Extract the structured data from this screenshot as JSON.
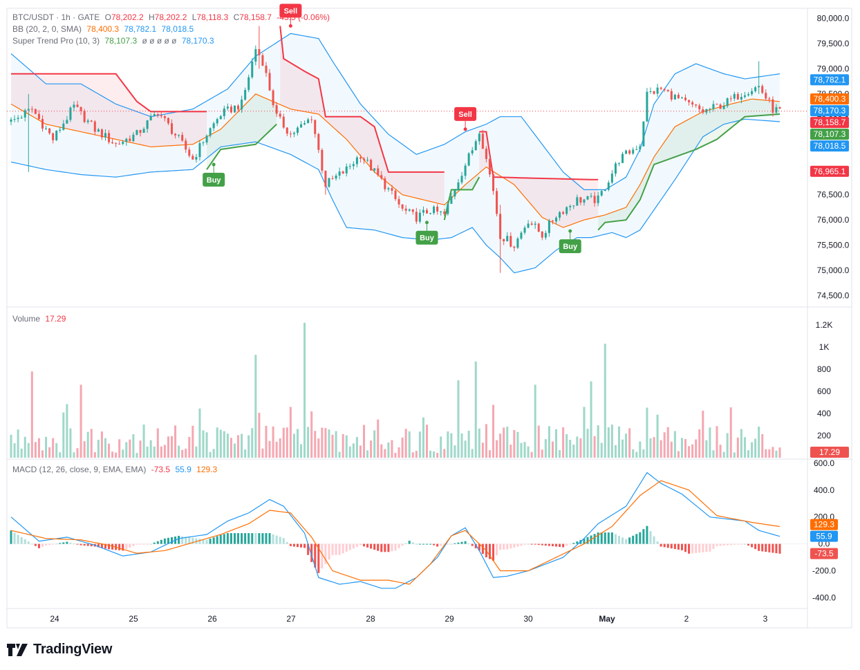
{
  "header": {
    "symbol": "BTC/USDT · 1h · GATE",
    "open_label": "O",
    "open": "78,202.2",
    "high_label": "H",
    "high": "78,202.2",
    "low_label": "L",
    "low": "78,118.3",
    "close_label": "C",
    "close": "78,158.7",
    "change": "-43.5 (-0.06%)"
  },
  "bb_legend": {
    "label": "BB (20, 2, 0, SMA)",
    "basis": "78,400.3",
    "upper": "78,782.1",
    "lower": "78,018.5"
  },
  "st_legend": {
    "label": "Super Trend Pro (10, 3)",
    "value": "78,107.3",
    "placeholders": "ø ø ø ø ø",
    "value2": "78,170.3"
  },
  "volume_legend": {
    "label": "Volume",
    "value": "17.29"
  },
  "macd_legend": {
    "label": "MACD (12, 26, close, 9, EMA, EMA)",
    "hist": "-73.5",
    "macd": "55.9",
    "signal": "129.3"
  },
  "brand": {
    "name": "TradingView"
  },
  "colors": {
    "up": "#26a69a",
    "down": "#ef5350",
    "vol_up": "#9fd8c9",
    "vol_down": "#f5a7b1",
    "bb_basis": "#ff6d00",
    "bb_band": "#2196f3",
    "st_up": "#43a047",
    "st_down": "#f23645",
    "macd": "#2196f3",
    "signal": "#ff6d00"
  },
  "chart_data": [
    {
      "type": "candlestick",
      "title": "BTC/USDT · 1h · GATE",
      "x_ticks": [
        "24",
        "25",
        "26",
        "27",
        "28",
        "29",
        "30",
        "May",
        "2",
        "3"
      ],
      "y_ticks": [
        "80,000.0",
        "79,500.0",
        "79,000.0",
        "78,500.0",
        "78,000.0",
        "77,500.0",
        "77,000.0",
        "76,500.0",
        "76,000.0",
        "75,500.0",
        "75,000.0",
        "74,500.0"
      ],
      "ylim": [
        74300,
        80200
      ],
      "price_path": [
        [
          0,
          77950
        ],
        [
          6,
          78200
        ],
        [
          12,
          77600
        ],
        [
          18,
          78250
        ],
        [
          24,
          77800
        ],
        [
          30,
          77500
        ],
        [
          36,
          77700
        ],
        [
          42,
          78150
        ],
        [
          48,
          77600
        ],
        [
          52,
          77200
        ],
        [
          56,
          77700
        ],
        [
          60,
          78100
        ],
        [
          66,
          78300
        ],
        [
          70,
          79400
        ],
        [
          72,
          79150
        ],
        [
          76,
          78050
        ],
        [
          80,
          77700
        ],
        [
          84,
          77900
        ],
        [
          86,
          78050
        ],
        [
          90,
          76700
        ],
        [
          96,
          77000
        ],
        [
          100,
          77300
        ],
        [
          104,
          76950
        ],
        [
          108,
          76600
        ],
        [
          112,
          76200
        ],
        [
          116,
          76050
        ],
        [
          120,
          76200
        ],
        [
          124,
          76100
        ],
        [
          128,
          76800
        ],
        [
          132,
          77400
        ],
        [
          134,
          77800
        ],
        [
          138,
          76600
        ],
        [
          140,
          75700
        ],
        [
          144,
          75500
        ],
        [
          148,
          76000
        ],
        [
          152,
          75700
        ],
        [
          156,
          76100
        ],
        [
          162,
          76400
        ],
        [
          168,
          76400
        ],
        [
          174,
          77200
        ],
        [
          180,
          77500
        ],
        [
          182,
          78500
        ],
        [
          186,
          78600
        ],
        [
          192,
          78350
        ],
        [
          198,
          78150
        ],
        [
          204,
          78300
        ],
        [
          210,
          78550
        ],
        [
          214,
          78650
        ],
        [
          218,
          78200
        ],
        [
          220,
          78160
        ]
      ],
      "wicks": [
        {
          "i": 5,
          "high": 78500,
          "low": 76950
        },
        {
          "i": 71,
          "high": 79850,
          "low": 79000
        },
        {
          "i": 90,
          "high": 76700,
          "low": 76500
        },
        {
          "i": 140,
          "high": 76300,
          "low": 74950
        },
        {
          "i": 214,
          "high": 79150,
          "low": 78500
        }
      ],
      "bollinger": {
        "upper": [
          [
            0,
            79300
          ],
          [
            10,
            78700
          ],
          [
            20,
            78700
          ],
          [
            30,
            78300
          ],
          [
            40,
            78050
          ],
          [
            52,
            78200
          ],
          [
            62,
            78600
          ],
          [
            70,
            79250
          ],
          [
            80,
            79700
          ],
          [
            88,
            79600
          ],
          [
            92,
            79150
          ],
          [
            100,
            78300
          ],
          [
            108,
            77700
          ],
          [
            116,
            77300
          ],
          [
            124,
            77500
          ],
          [
            130,
            77750
          ],
          [
            136,
            77900
          ],
          [
            140,
            78050
          ],
          [
            146,
            78050
          ],
          [
            152,
            77500
          ],
          [
            158,
            76950
          ],
          [
            164,
            76600
          ],
          [
            170,
            76600
          ],
          [
            176,
            76850
          ],
          [
            180,
            77400
          ],
          [
            184,
            78300
          ],
          [
            190,
            78900
          ],
          [
            196,
            79100
          ],
          [
            204,
            78900
          ],
          [
            210,
            78800
          ],
          [
            220,
            78900
          ]
        ],
        "basis": [
          [
            0,
            78300
          ],
          [
            10,
            77900
          ],
          [
            20,
            77750
          ],
          [
            30,
            77600
          ],
          [
            40,
            77450
          ],
          [
            52,
            77500
          ],
          [
            60,
            77800
          ],
          [
            70,
            78500
          ],
          [
            80,
            78200
          ],
          [
            88,
            78100
          ],
          [
            96,
            77600
          ],
          [
            104,
            76950
          ],
          [
            112,
            76500
          ],
          [
            124,
            76300
          ],
          [
            130,
            76700
          ],
          [
            136,
            77050
          ],
          [
            144,
            76700
          ],
          [
            152,
            76050
          ],
          [
            158,
            75850
          ],
          [
            164,
            76000
          ],
          [
            170,
            76100
          ],
          [
            176,
            76250
          ],
          [
            180,
            76700
          ],
          [
            184,
            77250
          ],
          [
            190,
            77850
          ],
          [
            198,
            78150
          ],
          [
            206,
            78300
          ],
          [
            212,
            78400
          ],
          [
            220,
            78350
          ]
        ],
        "lower": [
          [
            0,
            77150
          ],
          [
            10,
            77000
          ],
          [
            20,
            76900
          ],
          [
            30,
            76850
          ],
          [
            40,
            76950
          ],
          [
            52,
            77000
          ],
          [
            60,
            77450
          ],
          [
            70,
            77550
          ],
          [
            80,
            77300
          ],
          [
            88,
            77000
          ],
          [
            92,
            76400
          ],
          [
            96,
            75850
          ],
          [
            104,
            75800
          ],
          [
            112,
            75650
          ],
          [
            120,
            75600
          ],
          [
            126,
            75650
          ],
          [
            132,
            75850
          ],
          [
            136,
            75500
          ],
          [
            140,
            75250
          ],
          [
            144,
            74950
          ],
          [
            150,
            75050
          ],
          [
            156,
            75400
          ],
          [
            162,
            75650
          ],
          [
            166,
            75650
          ],
          [
            172,
            75750
          ],
          [
            176,
            75650
          ],
          [
            180,
            75800
          ],
          [
            184,
            76200
          ],
          [
            190,
            76800
          ],
          [
            198,
            77650
          ],
          [
            204,
            77900
          ],
          [
            210,
            78000
          ],
          [
            220,
            77950
          ]
        ]
      },
      "supertrend": [
        {
          "dir": "down",
          "points": [
            [
              0,
              78900
            ],
            [
              30,
              78900
            ],
            [
              36,
              78350
            ],
            [
              40,
              78150
            ],
            [
              56,
              78150
            ]
          ]
        },
        {
          "dir": "up",
          "points": [
            [
              56,
              77000
            ],
            [
              60,
              77400
            ],
            [
              70,
              77500
            ],
            [
              76,
              77900
            ]
          ]
        },
        {
          "dir": "down",
          "points": [
            [
              77,
              79850
            ],
            [
              78,
              79200
            ],
            [
              84,
              78950
            ],
            [
              88,
              78800
            ],
            [
              90,
              78050
            ],
            [
              100,
              78050
            ],
            [
              104,
              77850
            ],
            [
              108,
              76950
            ],
            [
              120,
              76950
            ],
            [
              124,
              76950
            ]
          ]
        },
        {
          "dir": "up",
          "points": [
            [
              124,
              76000
            ],
            [
              126,
              76600
            ],
            [
              132,
              76600
            ],
            [
              134,
              76850
            ]
          ]
        },
        {
          "dir": "down",
          "points": [
            [
              134,
              77750
            ],
            [
              136,
              77750
            ],
            [
              138,
              76850
            ],
            [
              166,
              76800
            ],
            [
              168,
              76800
            ]
          ]
        },
        {
          "dir": "up",
          "points": [
            [
              168,
              75800
            ],
            [
              170,
              75950
            ],
            [
              176,
              76000
            ],
            [
              180,
              76400
            ],
            [
              184,
              77100
            ],
            [
              196,
              77400
            ],
            [
              202,
              77600
            ],
            [
              210,
              78050
            ],
            [
              220,
              78100
            ]
          ]
        }
      ],
      "signals": [
        {
          "label": "Sell",
          "i": 80,
          "price": 79850,
          "side": "sell"
        },
        {
          "label": "Buy",
          "i": 58,
          "price": 77100,
          "side": "buy"
        },
        {
          "label": "Sell",
          "i": 130,
          "price": 77800,
          "side": "sell"
        },
        {
          "label": "Buy",
          "i": 119,
          "price": 75950,
          "side": "buy"
        },
        {
          "label": "Buy",
          "i": 160,
          "price": 75780,
          "side": "buy"
        }
      ],
      "price_tags": [
        {
          "value": "78,782.1",
          "color": "#2196f3"
        },
        {
          "value": "78,400.3",
          "color": "#ff6d00"
        },
        {
          "value": "78,170.3",
          "color": "#2196f3"
        },
        {
          "value": "78,158.7",
          "color": "#f23645"
        },
        {
          "value": "78,107.3",
          "color": "#43a047"
        },
        {
          "value": "78,018.5",
          "color": "#2196f3"
        },
        {
          "value": "76,965.1",
          "color": "#f23645"
        }
      ]
    },
    {
      "type": "bar",
      "title": "Volume",
      "y_ticks": [
        "1.2K",
        "1K",
        "800",
        "600",
        "400",
        "200"
      ],
      "ylim": [
        0,
        1300
      ],
      "last_value": "17.29",
      "spikes": [
        [
          6,
          780
        ],
        [
          20,
          660
        ],
        [
          70,
          930
        ],
        [
          84,
          1220
        ],
        [
          128,
          700
        ],
        [
          133,
          870
        ],
        [
          150,
          660
        ],
        [
          166,
          690
        ],
        [
          170,
          1030
        ]
      ]
    },
    {
      "type": "line",
      "title": "MACD (12, 26, close, 9, EMA, EMA)",
      "y_ticks": [
        "600.0",
        "400.0",
        "200.0",
        "0.0",
        "-200.0",
        "-400.0"
      ],
      "ylim": [
        -480,
        620
      ],
      "macd": [
        [
          0,
          200
        ],
        [
          8,
          20
        ],
        [
          16,
          50
        ],
        [
          24,
          -10
        ],
        [
          32,
          -90
        ],
        [
          40,
          -60
        ],
        [
          48,
          40
        ],
        [
          56,
          70
        ],
        [
          62,
          170
        ],
        [
          68,
          230
        ],
        [
          74,
          330
        ],
        [
          78,
          280
        ],
        [
          84,
          80
        ],
        [
          88,
          -250
        ],
        [
          94,
          -300
        ],
        [
          100,
          -280
        ],
        [
          106,
          -330
        ],
        [
          110,
          -330
        ],
        [
          116,
          -250
        ],
        [
          122,
          -100
        ],
        [
          126,
          60
        ],
        [
          130,
          120
        ],
        [
          134,
          -50
        ],
        [
          138,
          -250
        ],
        [
          142,
          -240
        ],
        [
          148,
          -200
        ],
        [
          152,
          -160
        ],
        [
          158,
          -100
        ],
        [
          164,
          40
        ],
        [
          168,
          150
        ],
        [
          176,
          280
        ],
        [
          182,
          530
        ],
        [
          186,
          450
        ],
        [
          192,
          370
        ],
        [
          200,
          200
        ],
        [
          210,
          170
        ],
        [
          214,
          100
        ],
        [
          220,
          56
        ]
      ],
      "signal": [
        [
          0,
          100
        ],
        [
          10,
          40
        ],
        [
          20,
          30
        ],
        [
          28,
          -10
        ],
        [
          36,
          -70
        ],
        [
          44,
          -50
        ],
        [
          52,
          10
        ],
        [
          60,
          70
        ],
        [
          68,
          150
        ],
        [
          74,
          250
        ],
        [
          80,
          230
        ],
        [
          86,
          50
        ],
        [
          92,
          -200
        ],
        [
          100,
          -270
        ],
        [
          108,
          -270
        ],
        [
          114,
          -300
        ],
        [
          120,
          -150
        ],
        [
          126,
          60
        ],
        [
          130,
          100
        ],
        [
          136,
          -50
        ],
        [
          140,
          -200
        ],
        [
          148,
          -200
        ],
        [
          156,
          -100
        ],
        [
          164,
          0
        ],
        [
          172,
          130
        ],
        [
          180,
          360
        ],
        [
          186,
          470
        ],
        [
          194,
          400
        ],
        [
          202,
          210
        ],
        [
          212,
          160
        ],
        [
          220,
          129
        ]
      ]
    }
  ]
}
